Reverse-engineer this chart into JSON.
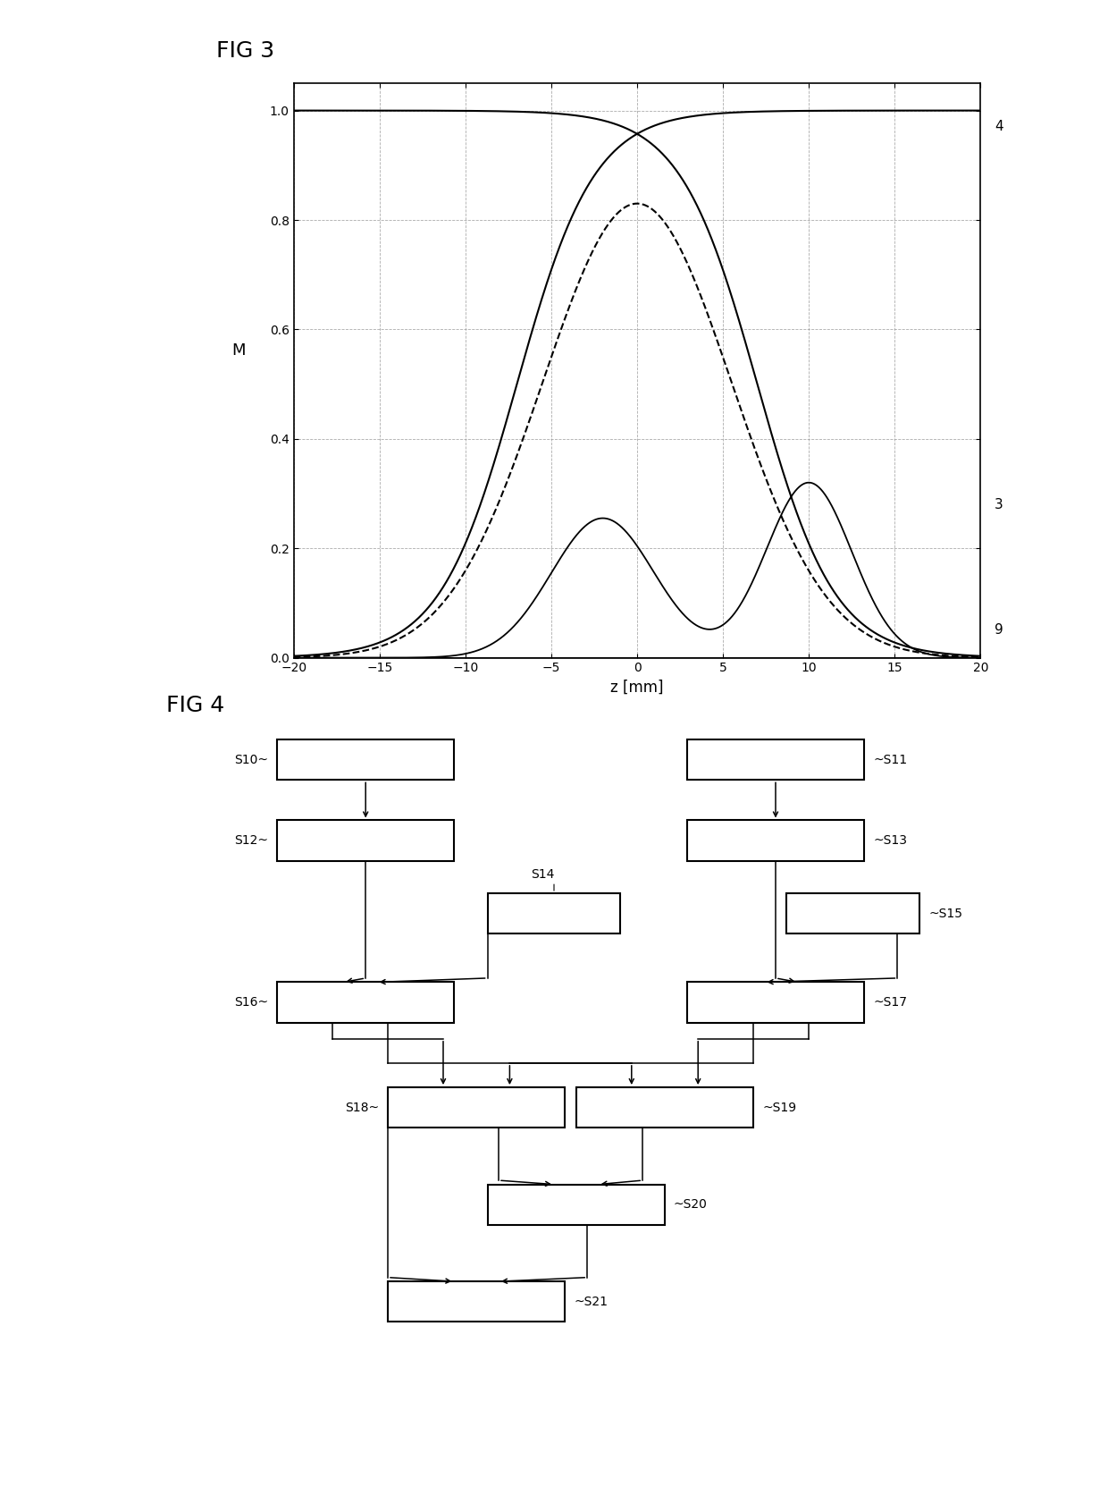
{
  "fig3_title": "FIG 3",
  "fig4_title": "FIG 4",
  "xlabel": "z [mm]",
  "ylabel": "M",
  "xlim": [
    -20,
    20
  ],
  "ylim": [
    0,
    1.05
  ],
  "yticks": [
    0,
    0.2,
    0.4,
    0.6,
    0.8,
    1
  ],
  "xticks": [
    -20,
    -15,
    -10,
    -5,
    0,
    5,
    10,
    15,
    20
  ],
  "label3": "3",
  "label4": "4",
  "label9": "9",
  "background": "#ffffff"
}
